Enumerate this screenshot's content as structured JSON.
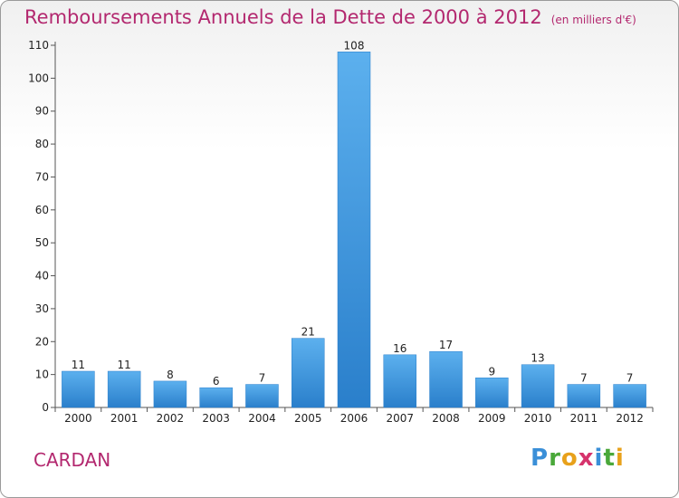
{
  "chart_data": {
    "type": "bar",
    "title": "Remboursements Annuels de la Dette de 2000 à 2012",
    "subtitle": "(en milliers d'€)",
    "categories": [
      "2000",
      "2001",
      "2002",
      "2003",
      "2004",
      "2005",
      "2006",
      "2007",
      "2008",
      "2009",
      "2010",
      "2011",
      "2012"
    ],
    "values": [
      11,
      11,
      8,
      6,
      7,
      21,
      108,
      16,
      17,
      9,
      13,
      7,
      7
    ],
    "ylim": [
      0,
      110
    ],
    "yticks": [
      0,
      10,
      20,
      30,
      40,
      50,
      60,
      70,
      80,
      90,
      100,
      110
    ],
    "xlabel": "",
    "ylabel": "",
    "grid": false
  },
  "commune": "CARDAN",
  "logo": "Proxiti",
  "colors": {
    "title": "#b3286f",
    "bar_top": "#5cb0ee",
    "bar_bottom": "#2a7fcb"
  }
}
